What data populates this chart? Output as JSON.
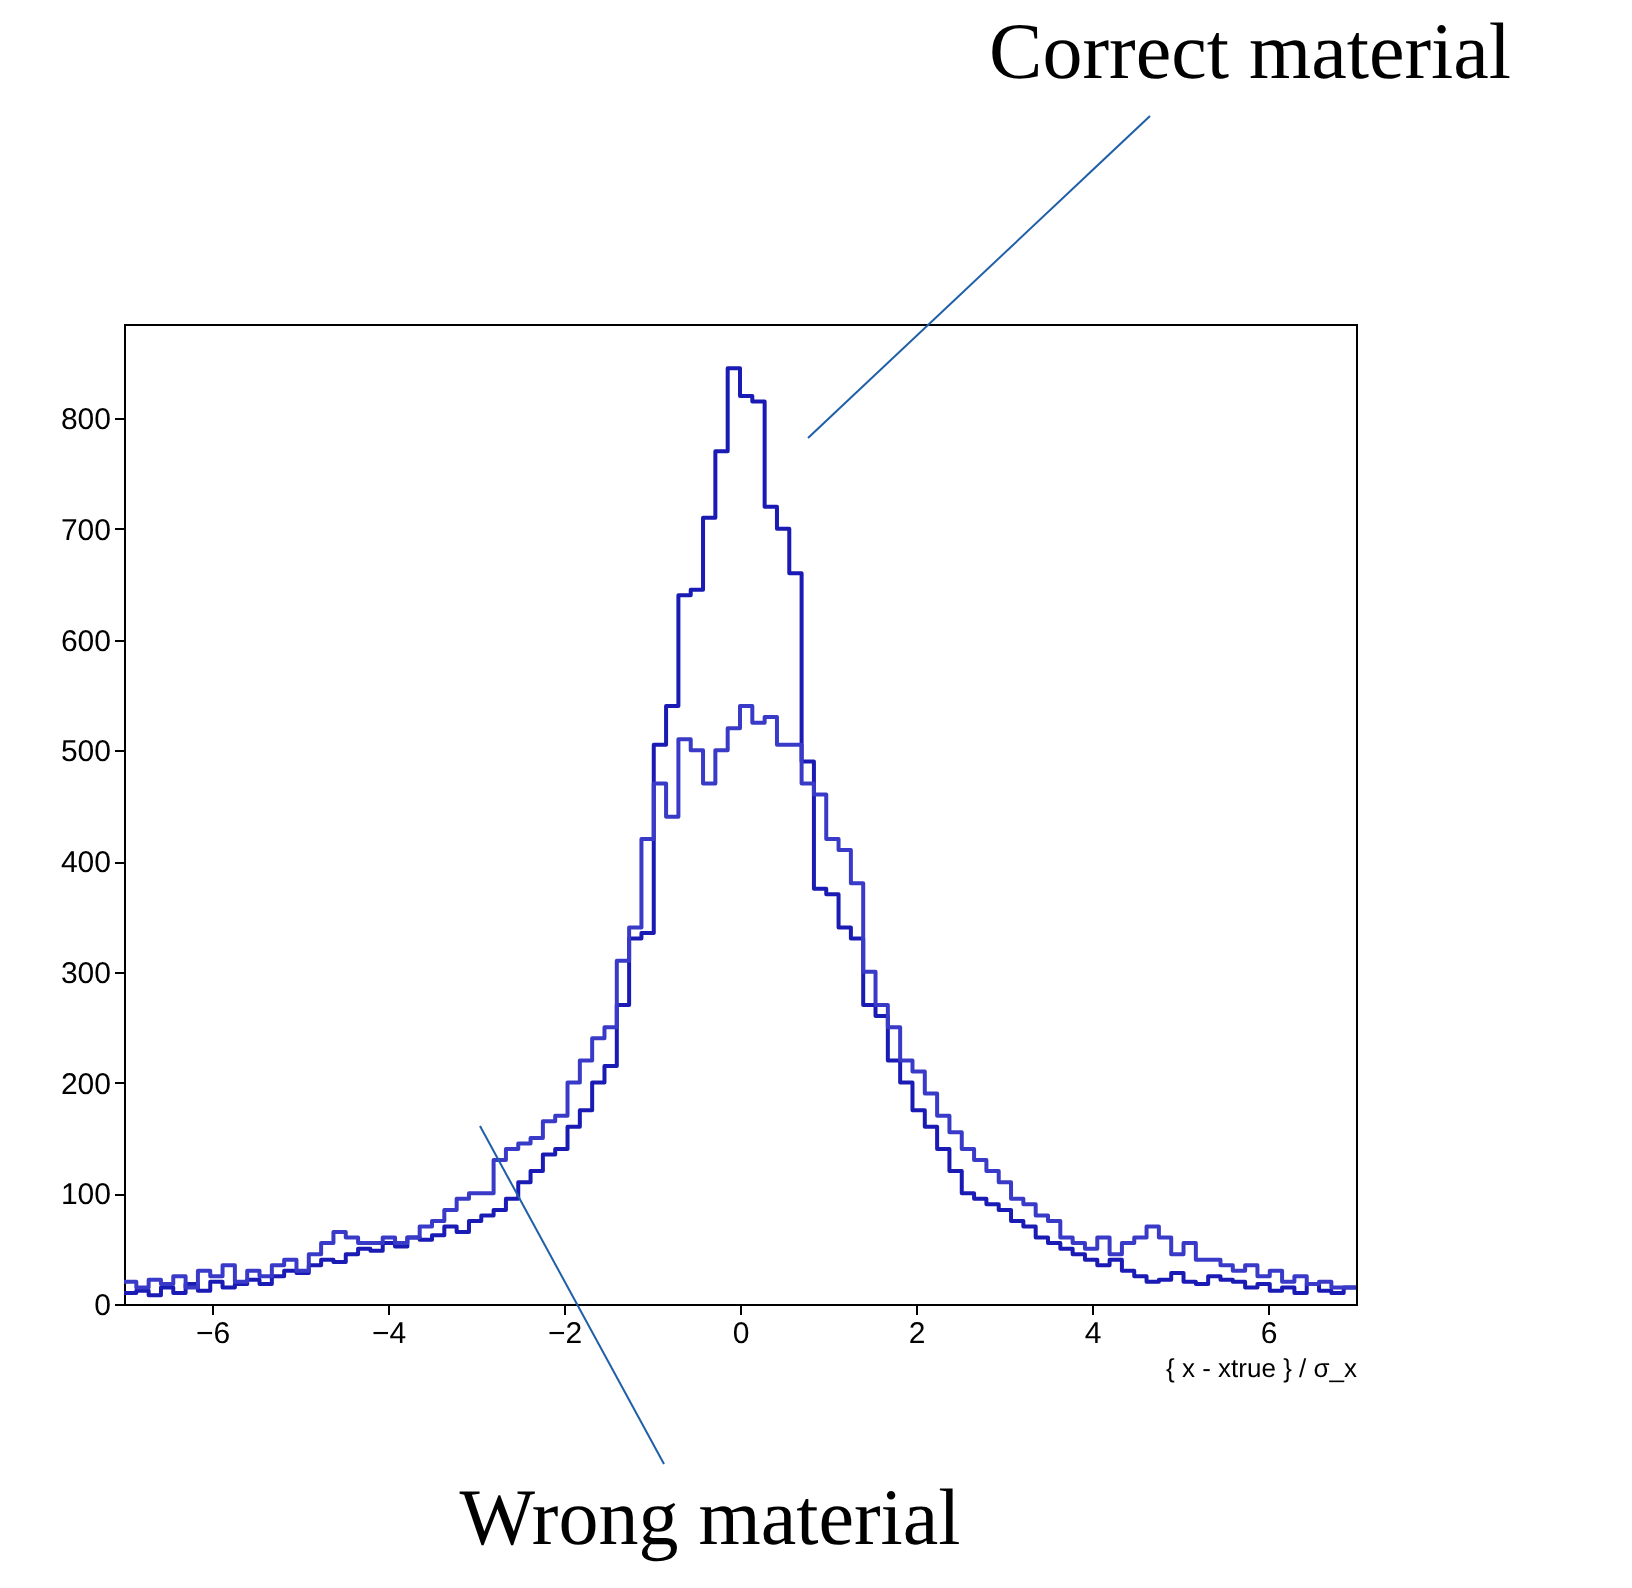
{
  "chart_data": {
    "type": "histogram",
    "xlabel": "{ x - xtrue } / σ_x",
    "xlim": [
      -7,
      7
    ],
    "xticks": [
      -6,
      -4,
      -2,
      0,
      2,
      4,
      6
    ],
    "ylim": [
      0,
      885
    ],
    "yticks": [
      0,
      100,
      200,
      300,
      400,
      500,
      600,
      700,
      800
    ],
    "grid": false,
    "bins": [
      -7,
      -6.86,
      -6.72,
      -6.58,
      -6.44,
      -6.3,
      -6.16,
      -6.02,
      -5.88,
      -5.74,
      -5.6,
      -5.46,
      -5.32,
      -5.18,
      -5.04,
      -4.9,
      -4.76,
      -4.62,
      -4.48,
      -4.34,
      -4.2,
      -4.06,
      -3.92,
      -3.78,
      -3.64,
      -3.5,
      -3.36,
      -3.22,
      -3.08,
      -2.94,
      -2.8,
      -2.66,
      -2.52,
      -2.38,
      -2.24,
      -2.1,
      -1.96,
      -1.82,
      -1.68,
      -1.54,
      -1.4,
      -1.26,
      -1.12,
      -0.98,
      -0.84,
      -0.7,
      -0.56,
      -0.42,
      -0.28,
      -0.14,
      0,
      0.14,
      0.28,
      0.42,
      0.56,
      0.7,
      0.84,
      0.98,
      1.12,
      1.26,
      1.4,
      1.54,
      1.68,
      1.82,
      1.96,
      2.1,
      2.24,
      2.38,
      2.52,
      2.66,
      2.8,
      2.94,
      3.08,
      3.22,
      3.36,
      3.5,
      3.64,
      3.78,
      3.92,
      4.06,
      4.2,
      4.34,
      4.48,
      4.62,
      4.76,
      4.9,
      5.04,
      5.18,
      5.32,
      5.46,
      5.6,
      5.74,
      5.88,
      6.02,
      6.16,
      6.3,
      6.44,
      6.58,
      6.72,
      6.86,
      7
    ],
    "series": [
      {
        "color": "#1a1ab4",
        "values": [
          10,
          12,
          8,
          15,
          10,
          18,
          12,
          20,
          15,
          18,
          22,
          18,
          25,
          30,
          28,
          35,
          40,
          38,
          45,
          50,
          48,
          55,
          52,
          60,
          58,
          62,
          70,
          65,
          75,
          80,
          85,
          95,
          110,
          120,
          135,
          140,
          160,
          175,
          200,
          215,
          270,
          330,
          335,
          505,
          540,
          640,
          645,
          710,
          770,
          845,
          820,
          815,
          720,
          700,
          660,
          490,
          375,
          370,
          340,
          330,
          270,
          260,
          220,
          200,
          175,
          160,
          140,
          120,
          100,
          95,
          90,
          85,
          75,
          70,
          60,
          55,
          50,
          45,
          40,
          35,
          40,
          30,
          25,
          20,
          22,
          28,
          20,
          18,
          25,
          22,
          20,
          15,
          18,
          12,
          15,
          10,
          18,
          12,
          10,
          15
        ]
      },
      {
        "color": "#3a3ac8",
        "values": [
          20,
          15,
          22,
          18,
          25,
          15,
          30,
          25,
          35,
          20,
          30,
          25,
          35,
          40,
          30,
          45,
          55,
          65,
          60,
          55,
          55,
          60,
          55,
          60,
          70,
          75,
          85,
          95,
          100,
          100,
          130,
          140,
          145,
          150,
          165,
          170,
          200,
          220,
          240,
          250,
          310,
          340,
          420,
          470,
          440,
          510,
          500,
          470,
          500,
          520,
          540,
          525,
          530,
          505,
          505,
          470,
          460,
          420,
          410,
          380,
          300,
          270,
          250,
          220,
          210,
          190,
          170,
          155,
          140,
          130,
          120,
          110,
          95,
          90,
          80,
          75,
          60,
          55,
          50,
          60,
          45,
          55,
          60,
          70,
          60,
          45,
          55,
          40,
          40,
          35,
          30,
          35,
          25,
          30,
          20,
          25,
          18,
          20,
          15,
          15
        ]
      }
    ],
    "annotations": [
      "Correct material",
      "Wrong material"
    ]
  }
}
